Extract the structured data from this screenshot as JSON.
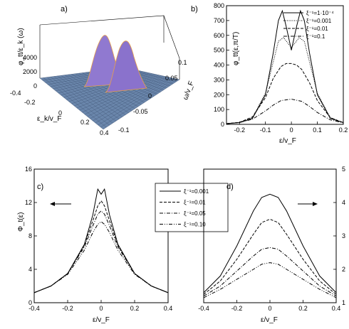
{
  "chart_data": [
    {
      "panel": "a)",
      "type": "surface",
      "zlabel": "φ_tt/ε_k (ω)",
      "xlabel": "ε_k/v_F",
      "ylabel": "ω/v_F",
      "z_ticks": [
        "4000",
        "2000",
        "0"
      ],
      "x_ticks": [
        "-0.4",
        "-0.2",
        "0",
        "0.2",
        "0.4"
      ],
      "y_ticks": [
        "0.1",
        "0.05",
        "0",
        "-0.05",
        "-0.1"
      ],
      "peaks_x": [
        -0.05,
        0.05
      ],
      "zlim": [
        0,
        4000
      ]
    },
    {
      "panel": "b)",
      "type": "line",
      "xlabel": "ε/v_F",
      "ylabel": "φ_tt(ε,π/T)",
      "xlim": [
        -0.25,
        0.2
      ],
      "ylim": [
        0,
        800
      ],
      "x_ticks": [
        "-0.2",
        "-0.1",
        "0",
        "0.1",
        "0.2"
      ],
      "y_ticks": [
        "0",
        "100",
        "200",
        "300",
        "400",
        "500",
        "600",
        "700",
        "800"
      ],
      "legend_position": "top-right",
      "series": [
        {
          "name": "ξ⁻¹=1·10⁻⁴",
          "style": "solid",
          "x": [
            -0.25,
            -0.2,
            -0.15,
            -0.1,
            -0.07,
            -0.05,
            -0.035,
            -0.02,
            0,
            0.02,
            0.035,
            0.05,
            0.07,
            0.1,
            0.15,
            0.2
          ],
          "y": [
            5,
            12,
            40,
            200,
            480,
            700,
            765,
            660,
            500,
            660,
            765,
            700,
            480,
            200,
            40,
            12
          ]
        },
        {
          "name": "ξ⁻¹=0.001",
          "style": "dotted",
          "x": [
            -0.25,
            -0.2,
            -0.15,
            -0.1,
            -0.07,
            -0.05,
            -0.03,
            -0.01,
            0,
            0.01,
            0.03,
            0.05,
            0.07,
            0.1,
            0.15,
            0.2
          ],
          "y": [
            5,
            12,
            45,
            210,
            420,
            560,
            585,
            540,
            520,
            540,
            585,
            560,
            420,
            210,
            45,
            12
          ]
        },
        {
          "name": "ξ⁻¹=0.01",
          "style": "dashed",
          "x": [
            -0.25,
            -0.2,
            -0.15,
            -0.1,
            -0.07,
            -0.04,
            -0.02,
            0,
            0.02,
            0.04,
            0.07,
            0.1,
            0.15,
            0.2
          ],
          "y": [
            5,
            14,
            50,
            180,
            310,
            390,
            410,
            410,
            400,
            370,
            280,
            160,
            45,
            12
          ]
        },
        {
          "name": "ξ⁻¹=0.1",
          "style": "dashdot",
          "x": [
            -0.25,
            -0.2,
            -0.15,
            -0.1,
            -0.07,
            -0.04,
            0,
            0.04,
            0.07,
            0.1,
            0.15,
            0.2
          ],
          "y": [
            5,
            12,
            35,
            90,
            130,
            160,
            170,
            155,
            120,
            80,
            30,
            10
          ]
        }
      ]
    },
    {
      "panel": "c)",
      "type": "line",
      "xlabel": "ε/v_F",
      "ylabel": "Φ_t(ε)",
      "xlim": [
        -0.4,
        0.4
      ],
      "ylim": [
        0,
        16
      ],
      "x_ticks": [
        "-0.4",
        "-0.2",
        "0",
        "0.2",
        "0.4"
      ],
      "y_ticks": [
        "0",
        "4",
        "8",
        "12",
        "16"
      ],
      "series": [
        {
          "name": "ξ⁻¹=0.001",
          "style": "solid",
          "x": [
            -0.4,
            -0.3,
            -0.2,
            -0.1,
            -0.05,
            -0.02,
            0,
            0.02,
            0.05,
            0.1,
            0.2,
            0.3,
            0.4
          ],
          "y": [
            1.2,
            2.0,
            3.5,
            7.0,
            10.5,
            13.6,
            13.0,
            13.6,
            10.5,
            7.0,
            3.5,
            2.0,
            1.2
          ]
        },
        {
          "name": "ξ⁻¹=0.01",
          "style": "dashed",
          "x": [
            -0.4,
            -0.3,
            -0.2,
            -0.1,
            -0.05,
            -0.02,
            0,
            0.02,
            0.05,
            0.1,
            0.2,
            0.3,
            0.4
          ],
          "y": [
            1.2,
            2.0,
            3.5,
            6.9,
            9.8,
            11.6,
            12.2,
            11.6,
            9.8,
            6.9,
            3.5,
            2.0,
            1.2
          ]
        },
        {
          "name": "ξ⁻¹=0.05",
          "style": "dashdot",
          "x": [
            -0.4,
            -0.3,
            -0.2,
            -0.1,
            -0.05,
            -0.02,
            0,
            0.02,
            0.05,
            0.1,
            0.2,
            0.3,
            0.4
          ],
          "y": [
            1.2,
            2.0,
            3.5,
            6.7,
            9.2,
            10.6,
            11.0,
            10.6,
            9.2,
            6.7,
            3.5,
            2.0,
            1.2
          ]
        },
        {
          "name": "ξ⁻¹=0.10",
          "style": "dashdotdot",
          "x": [
            -0.4,
            -0.3,
            -0.2,
            -0.1,
            -0.05,
            -0.02,
            0,
            0.02,
            0.05,
            0.1,
            0.2,
            0.3,
            0.4
          ],
          "y": [
            1.2,
            2.0,
            3.4,
            6.3,
            8.4,
            9.4,
            9.7,
            9.4,
            8.4,
            6.3,
            3.4,
            2.0,
            1.2
          ]
        }
      ],
      "arrow": "left"
    },
    {
      "panel": "d)",
      "type": "line",
      "xlabel": "ε/v_F",
      "xlim": [
        -0.4,
        0.4
      ],
      "ylim": [
        1,
        5
      ],
      "x_ticks": [
        "-0.4",
        "-0.2",
        "0",
        "0.2",
        "0.4"
      ],
      "y_ticks": [
        "1",
        "2",
        "3",
        "4",
        "5"
      ],
      "y_axis_side": "right",
      "series": [
        {
          "name": "ξ⁻¹=0.001",
          "style": "solid",
          "x": [
            -0.4,
            -0.3,
            -0.2,
            -0.1,
            -0.05,
            0,
            0.05,
            0.1,
            0.2,
            0.3,
            0.4
          ],
          "y": [
            1.3,
            1.8,
            2.7,
            3.75,
            4.15,
            4.25,
            4.15,
            3.75,
            2.7,
            1.8,
            1.3
          ]
        },
        {
          "name": "ξ⁻¹=0.01",
          "style": "dashed",
          "x": [
            -0.4,
            -0.3,
            -0.2,
            -0.1,
            -0.05,
            0,
            0.05,
            0.1,
            0.2,
            0.3,
            0.4
          ],
          "y": [
            1.25,
            1.65,
            2.3,
            3.05,
            3.4,
            3.5,
            3.4,
            3.05,
            2.3,
            1.65,
            1.25
          ]
        },
        {
          "name": "ξ⁻¹=0.05",
          "style": "dashdot",
          "x": [
            -0.4,
            -0.3,
            -0.2,
            -0.1,
            -0.05,
            0,
            0.05,
            0.1,
            0.2,
            0.3,
            0.4
          ],
          "y": [
            1.2,
            1.5,
            1.95,
            2.4,
            2.6,
            2.65,
            2.6,
            2.4,
            1.95,
            1.5,
            1.2
          ]
        },
        {
          "name": "ξ⁻¹=0.10",
          "style": "dashdotdot",
          "x": [
            -0.4,
            -0.3,
            -0.2,
            -0.1,
            -0.05,
            0,
            0.05,
            0.1,
            0.2,
            0.3,
            0.4
          ],
          "y": [
            1.15,
            1.4,
            1.7,
            2.0,
            2.15,
            2.2,
            2.15,
            2.0,
            1.7,
            1.4,
            1.15
          ]
        }
      ],
      "arrow": "right"
    }
  ],
  "colors": {
    "surface_top": "#8a72cc",
    "surface_base": "#5f7fa6",
    "peak_edge": "#e8a04a"
  }
}
